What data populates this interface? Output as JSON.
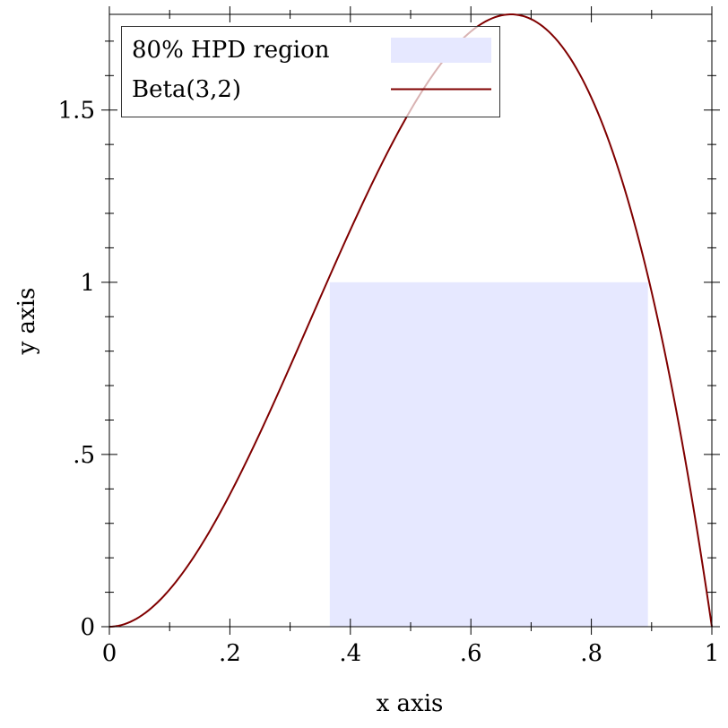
{
  "chart_data": {
    "type": "area",
    "xlabel": "x axis",
    "ylabel": "y axis",
    "xlim": [
      0,
      1
    ],
    "ylim": [
      0,
      1.7778
    ],
    "grid": false,
    "legend_position": "top-left",
    "x_ticks": [
      0,
      0.2,
      0.4,
      0.6,
      0.8,
      1
    ],
    "x_tick_labels": [
      "0",
      ".2",
      ".4",
      ".6",
      ".8",
      "1"
    ],
    "y_ticks": [
      0,
      0.5,
      1,
      1.5
    ],
    "y_tick_labels": [
      "0",
      ".5",
      "1",
      "1.5"
    ],
    "series": [
      {
        "name": "80% HPD region",
        "kind": "interval",
        "x_start": 0.3658,
        "x_end": 0.8939,
        "y_top": 1.0,
        "color": "#e6e8ff"
      },
      {
        "name": "Beta(3,2)",
        "kind": "line",
        "color": "#800000",
        "x": [
          0,
          0.05,
          0.1,
          0.15,
          0.2,
          0.25,
          0.3,
          0.35,
          0.4,
          0.45,
          0.5,
          0.55,
          0.6,
          0.65,
          0.6667,
          0.7,
          0.75,
          0.8,
          0.85,
          0.9,
          0.95,
          1
        ],
        "y": [
          0,
          0.0285,
          0.108,
          0.2295,
          0.384,
          0.5625,
          0.756,
          0.9555,
          1.152,
          1.3365,
          1.5,
          1.6335,
          1.728,
          1.7745,
          1.7778,
          1.764,
          1.6875,
          1.536,
          1.3005,
          0.972,
          0.5415,
          0
        ]
      }
    ]
  }
}
